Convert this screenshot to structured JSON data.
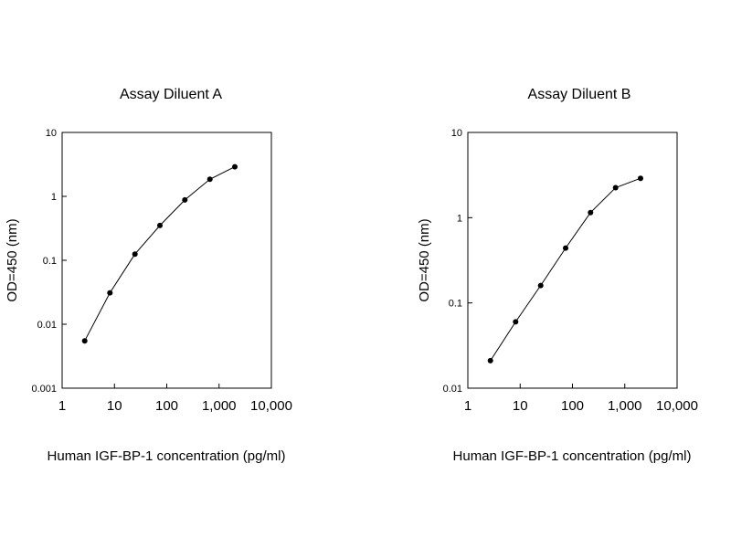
{
  "chart_data": [
    {
      "type": "line",
      "title": "Assay Diluent A",
      "xlabel": "Human IGF-BP-1 concentration (pg/ml)",
      "ylabel": "OD=450 (nm)",
      "xscale": "log",
      "yscale": "log",
      "xlim": [
        1,
        10000
      ],
      "ylim": [
        0.001,
        10
      ],
      "x_ticks": [
        "1",
        "10",
        "100",
        "1,000",
        "10,000"
      ],
      "y_ticks": [
        "0.001",
        "0.01",
        "0.1",
        "1",
        "10"
      ],
      "grid": false,
      "series": [
        {
          "x": [
            2.7,
            8.2,
            24.7,
            74,
            222,
            667,
            2000
          ],
          "y": [
            0.0055,
            0.031,
            0.125,
            0.35,
            0.88,
            1.85,
            2.9
          ]
        }
      ]
    },
    {
      "type": "line",
      "title": "Assay Diluent B",
      "xlabel": "Human IGF-BP-1 concentration (pg/ml)",
      "ylabel": "OD=450 (nm)",
      "xscale": "log",
      "yscale": "log",
      "xlim": [
        1,
        10000
      ],
      "ylim": [
        0.01,
        10
      ],
      "x_ticks": [
        "1",
        "10",
        "100",
        "1,000",
        "10,000"
      ],
      "y_ticks": [
        "0.01",
        "0.1",
        "1",
        "10"
      ],
      "grid": false,
      "series": [
        {
          "x": [
            2.7,
            8.2,
            24.7,
            74,
            222,
            667,
            2000
          ],
          "y": [
            0.021,
            0.06,
            0.16,
            0.44,
            1.15,
            2.25,
            2.9
          ]
        }
      ]
    }
  ]
}
